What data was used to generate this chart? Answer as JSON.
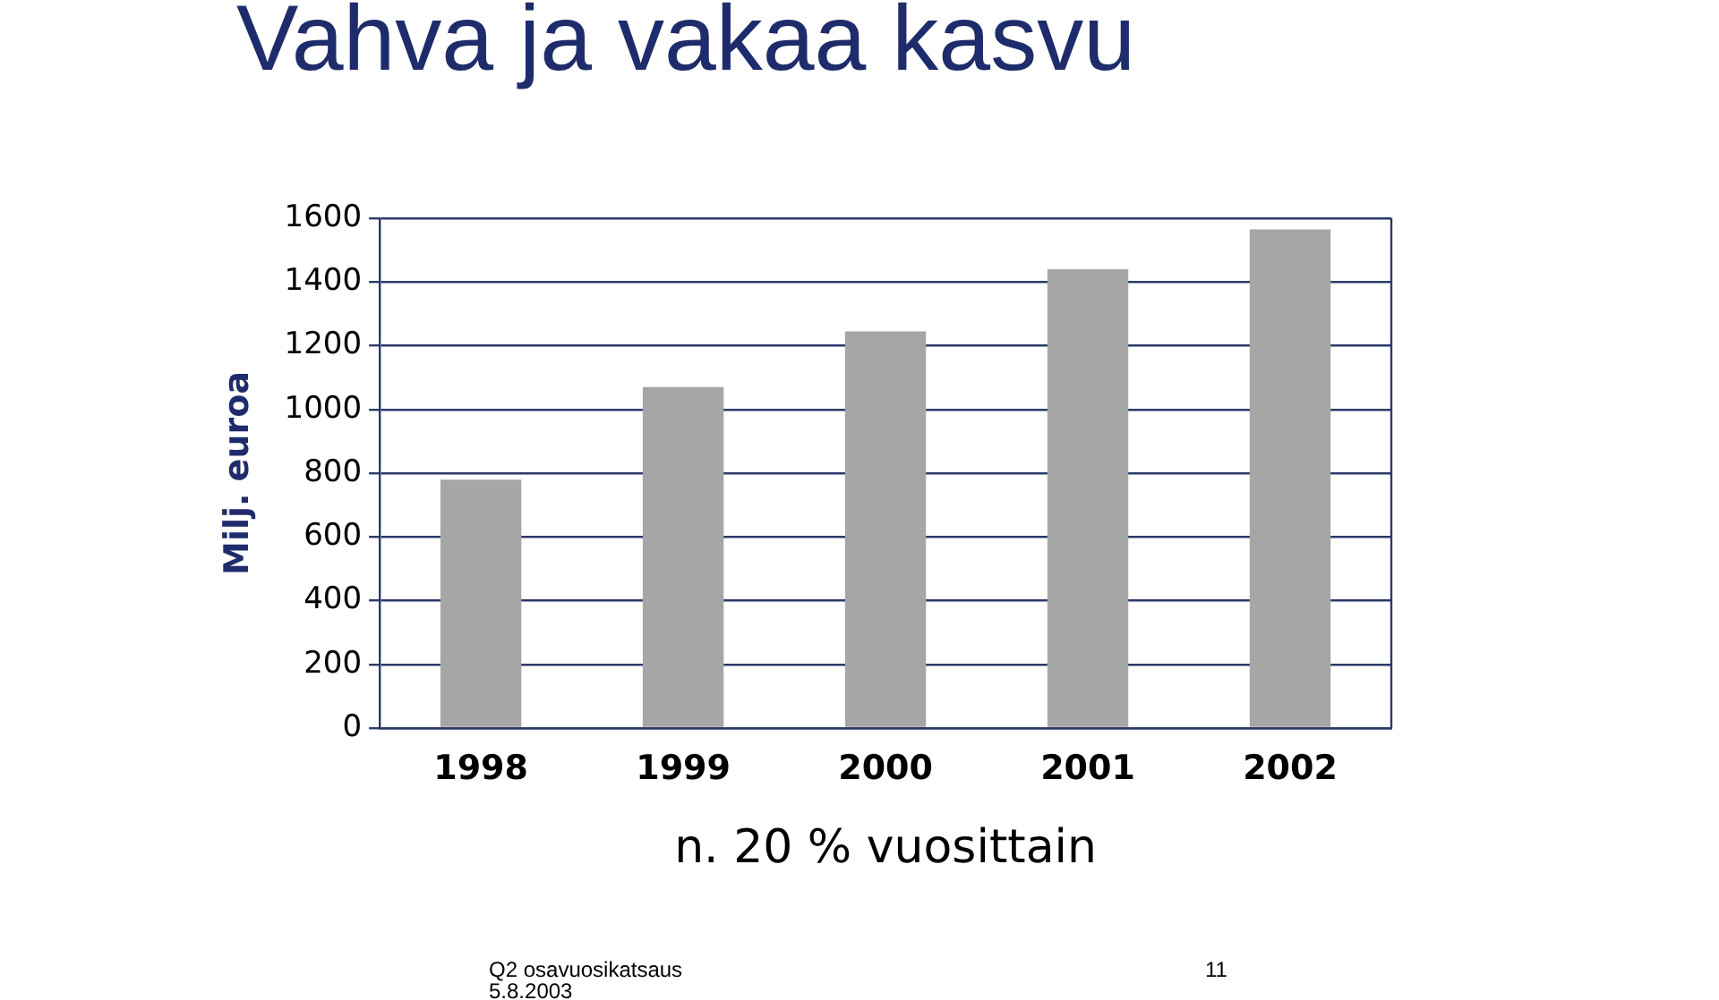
{
  "chart_data": {
    "type": "bar",
    "title": "Vahva ja vakaa kasvu",
    "ylabel": "Milj. euroa",
    "xlabel": "n. 20 % vuosittain",
    "categories": [
      "1998",
      "1999",
      "2000",
      "2001",
      "2002"
    ],
    "values": [
      780,
      1070,
      1245,
      1440,
      1565
    ],
    "color": "#a6a6a6",
    "ylim": [
      0,
      1600
    ],
    "yticks": [
      0,
      200,
      400,
      600,
      800,
      1000,
      1200,
      1400,
      1600
    ],
    "grid": "y",
    "legend": false,
    "annotations": [
      "Q2 osavuosikatsaus",
      "5.8.2003",
      "11"
    ]
  }
}
